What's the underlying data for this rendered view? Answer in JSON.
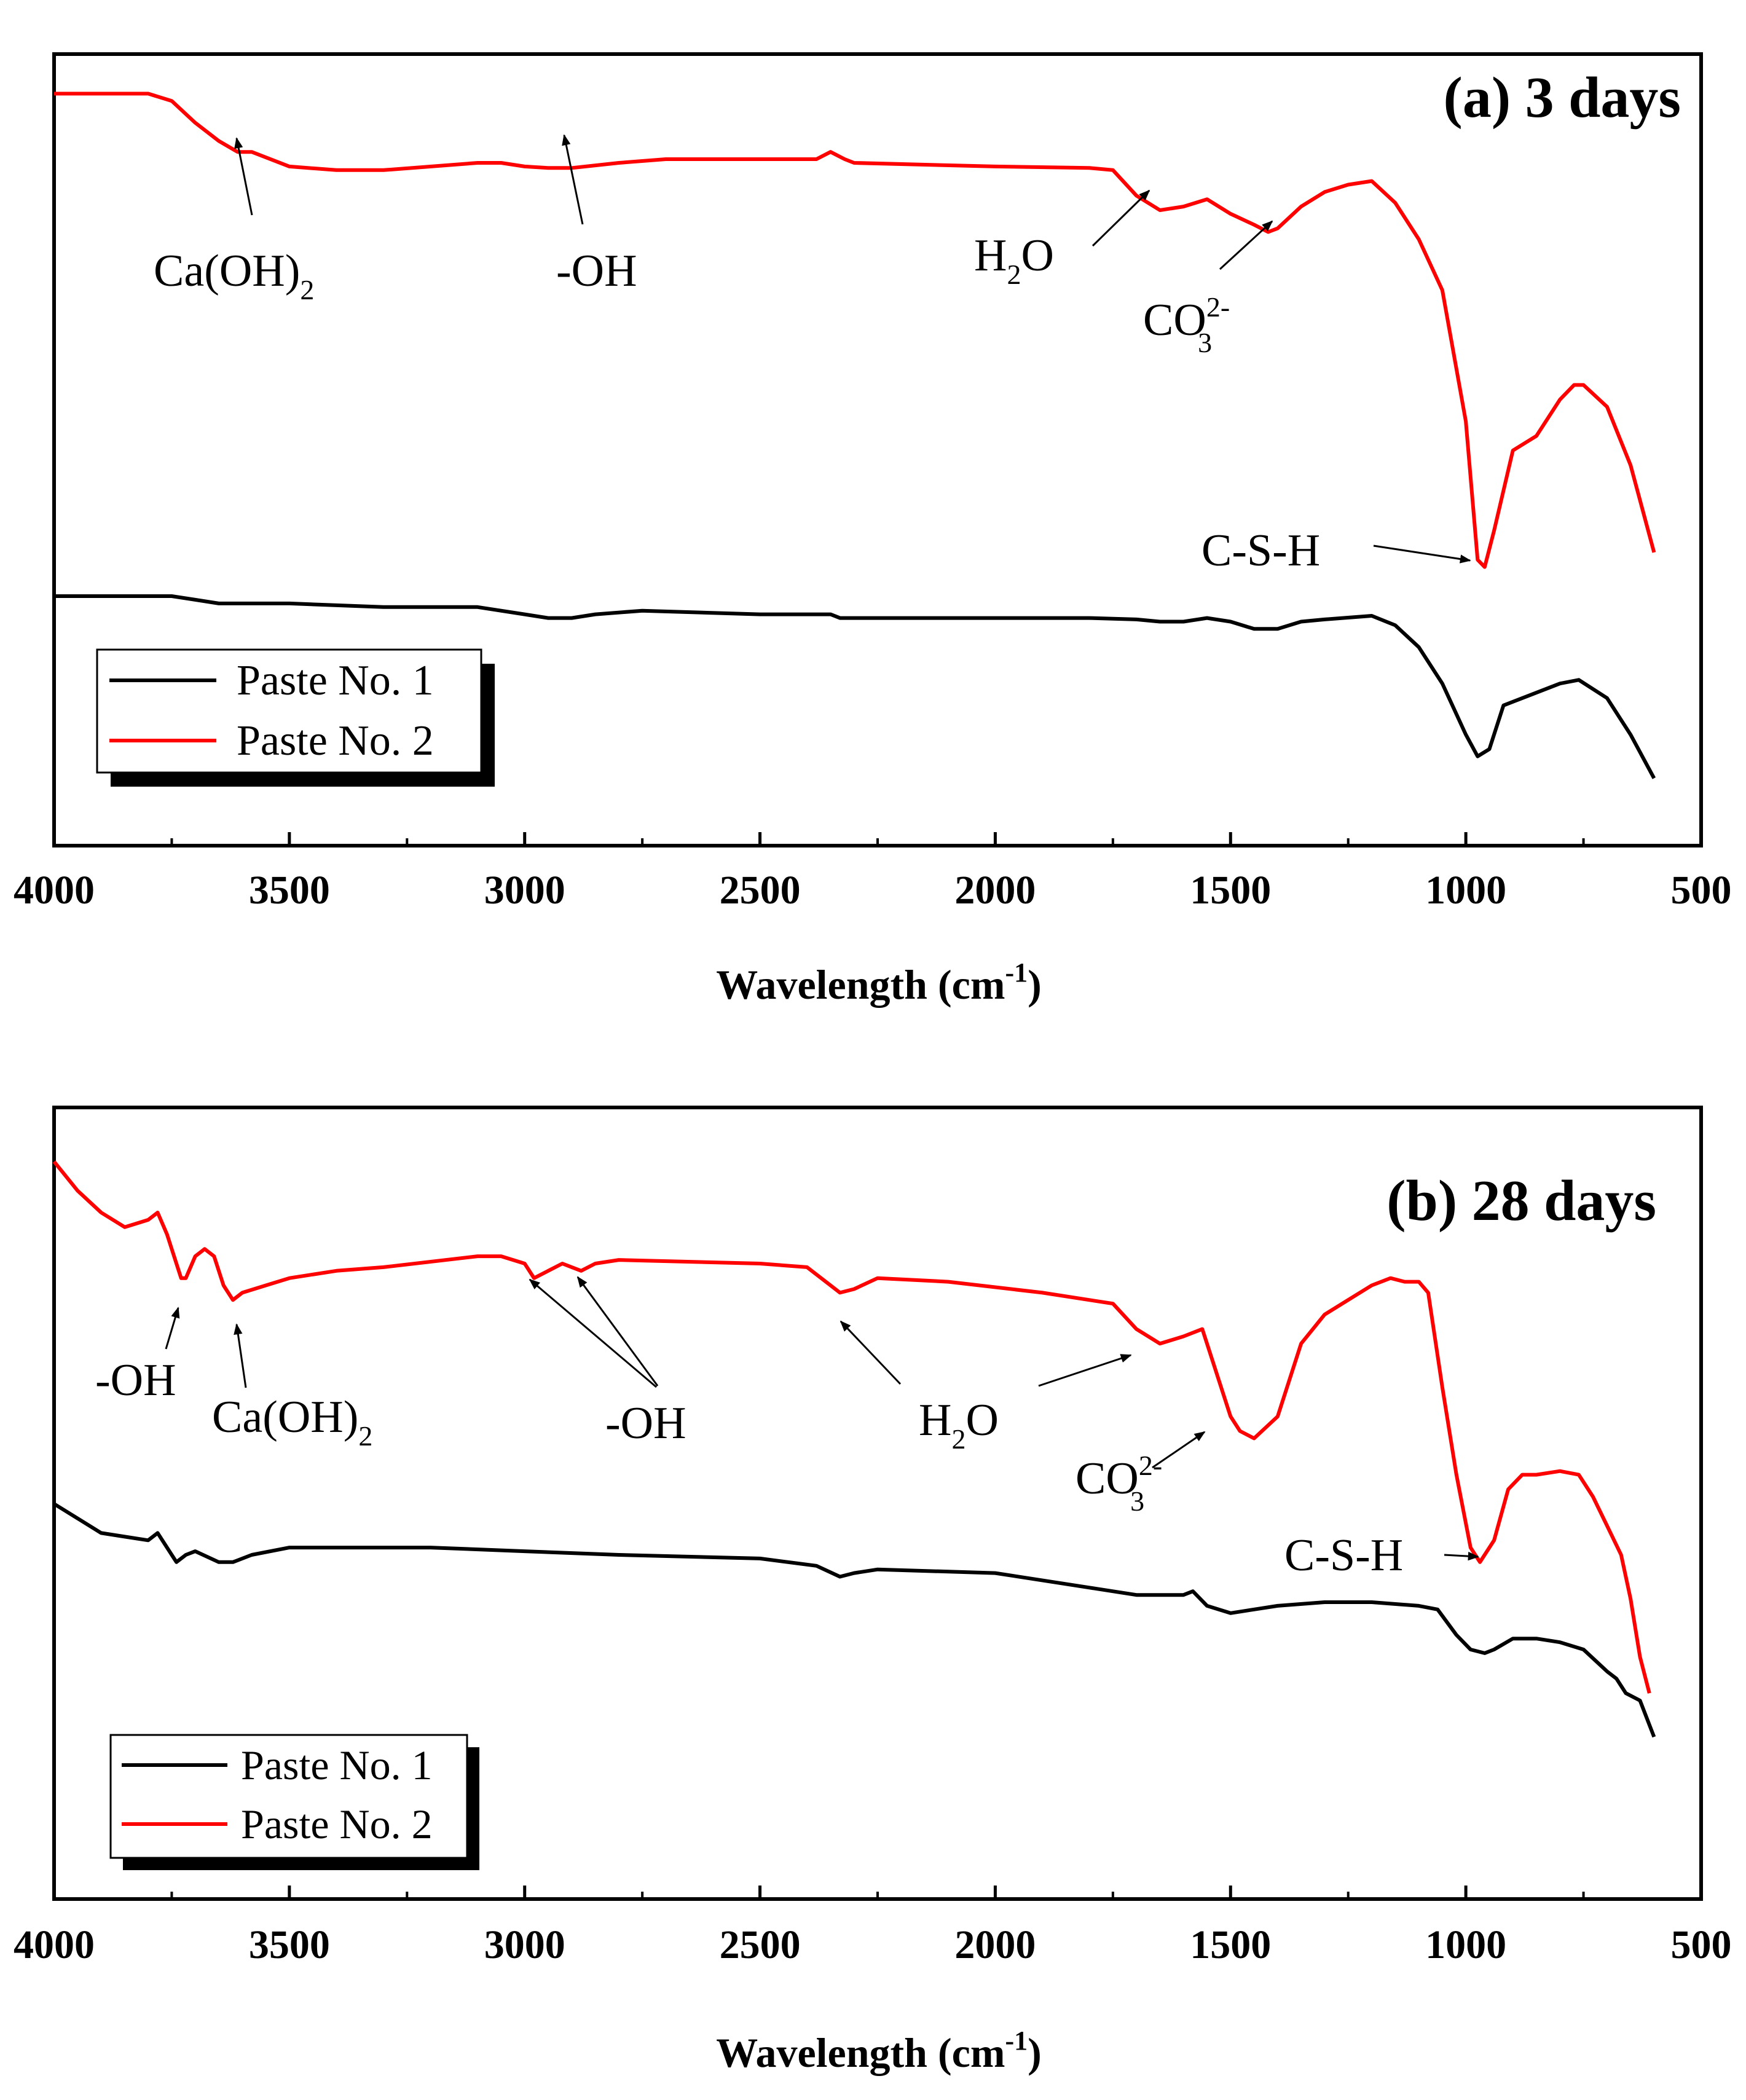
{
  "chart_data": [
    {
      "type": "line",
      "title": "(a) 3 days",
      "xlabel": "Wavelength (cm",
      "xlabel_sup": "-1",
      "xlabel_end": ")",
      "ylabel": "",
      "xlim": [
        4000,
        500
      ],
      "ylim": [
        0,
        100
      ],
      "x_ticks": [
        "4000",
        "3500",
        "3000",
        "2500",
        "2000",
        "1500",
        "1000",
        "500"
      ],
      "legend": {
        "position": "bottom-left",
        "entries": [
          "Paste No. 1",
          "Paste No. 2"
        ]
      },
      "series": [
        {
          "name": "Paste No. 1",
          "color": "#000000",
          "points": [
            [
              4000,
              31
            ],
            [
              3850,
              31
            ],
            [
              3750,
              31
            ],
            [
              3700,
              30.5
            ],
            [
              3650,
              30
            ],
            [
              3600,
              30
            ],
            [
              3500,
              30
            ],
            [
              3300,
              29.5
            ],
            [
              3100,
              29.5
            ],
            [
              3000,
              28.5
            ],
            [
              2950,
              28
            ],
            [
              2900,
              28
            ],
            [
              2850,
              28.5
            ],
            [
              2750,
              29
            ],
            [
              2500,
              28.5
            ],
            [
              2350,
              28.5
            ],
            [
              2330,
              28
            ],
            [
              2300,
              28
            ],
            [
              2200,
              28
            ],
            [
              2000,
              28
            ],
            [
              1800,
              28
            ],
            [
              1700,
              27.8
            ],
            [
              1650,
              27.5
            ],
            [
              1600,
              27.5
            ],
            [
              1550,
              28
            ],
            [
              1500,
              27.5
            ],
            [
              1450,
              26.5
            ],
            [
              1400,
              26.5
            ],
            [
              1350,
              27.5
            ],
            [
              1300,
              27.8
            ],
            [
              1200,
              28.3
            ],
            [
              1150,
              27
            ],
            [
              1100,
              24
            ],
            [
              1050,
              19
            ],
            [
              1000,
              12
            ],
            [
              975,
              9
            ],
            [
              950,
              10
            ],
            [
              920,
              16
            ],
            [
              880,
              17
            ],
            [
              800,
              19
            ],
            [
              760,
              19.5
            ],
            [
              700,
              17
            ],
            [
              650,
              12
            ],
            [
              600,
              6
            ]
          ]
        },
        {
          "name": "Paste No. 2",
          "color": "#ff0000",
          "points": [
            [
              4000,
              100
            ],
            [
              3950,
              100
            ],
            [
              3800,
              100
            ],
            [
              3750,
              99
            ],
            [
              3700,
              96
            ],
            [
              3650,
              93.5
            ],
            [
              3610,
              92
            ],
            [
              3580,
              92
            ],
            [
              3500,
              90
            ],
            [
              3400,
              89.5
            ],
            [
              3300,
              89.5
            ],
            [
              3100,
              90.5
            ],
            [
              3050,
              90.5
            ],
            [
              3000,
              90
            ],
            [
              2950,
              89.8
            ],
            [
              2900,
              89.8
            ],
            [
              2800,
              90.5
            ],
            [
              2700,
              91
            ],
            [
              2500,
              91
            ],
            [
              2380,
              91
            ],
            [
              2350,
              92
            ],
            [
              2320,
              91
            ],
            [
              2300,
              90.5
            ],
            [
              2000,
              90
            ],
            [
              1800,
              89.8
            ],
            [
              1750,
              89.5
            ],
            [
              1700,
              86
            ],
            [
              1650,
              84
            ],
            [
              1600,
              84.5
            ],
            [
              1550,
              85.5
            ],
            [
              1500,
              83.5
            ],
            [
              1450,
              82
            ],
            [
              1420,
              81
            ],
            [
              1400,
              81.5
            ],
            [
              1350,
              84.5
            ],
            [
              1300,
              86.5
            ],
            [
              1250,
              87.5
            ],
            [
              1200,
              88
            ],
            [
              1150,
              85
            ],
            [
              1100,
              80
            ],
            [
              1050,
              73
            ],
            [
              1000,
              55
            ],
            [
              975,
              36
            ],
            [
              960,
              35
            ],
            [
              940,
              40
            ],
            [
              900,
              51
            ],
            [
              850,
              53
            ],
            [
              800,
              58
            ],
            [
              770,
              60
            ],
            [
              750,
              60
            ],
            [
              700,
              57
            ],
            [
              650,
              49
            ],
            [
              600,
              37
            ]
          ]
        }
      ],
      "annotations": [
        {
          "label": "Ca(OH)",
          "sub": "2",
          "x": 3610,
          "y": 92
        },
        {
          "label": "-OH",
          "sub": "",
          "x": 2930,
          "y": 89.8
        },
        {
          "label": "H",
          "sub": "2",
          "label2": "O",
          "x": 1660,
          "y": 84
        },
        {
          "label": "CO",
          "sub": "3",
          "sup": "2-",
          "x": 1415,
          "y": 81
        },
        {
          "label": "C-S-H",
          "sub": "",
          "x": 968,
          "y": 35
        }
      ]
    },
    {
      "type": "line",
      "title": "(b) 28 days",
      "xlabel": "Wavelength (cm",
      "xlabel_sup": "-1",
      "xlabel_end": ")",
      "ylabel": "",
      "xlim": [
        4000,
        500
      ],
      "ylim": [
        0,
        100
      ],
      "x_ticks": [
        "4000",
        "3500",
        "3000",
        "2500",
        "2000",
        "1500",
        "1000",
        "500"
      ],
      "legend": {
        "position": "bottom-left",
        "entries": [
          "Paste No. 1",
          "Paste No. 2"
        ]
      },
      "series": [
        {
          "name": "Paste No. 1",
          "color": "#000000",
          "points": [
            [
              4000,
              51
            ],
            [
              3950,
              49
            ],
            [
              3900,
              47
            ],
            [
              3850,
              46.5
            ],
            [
              3800,
              46
            ],
            [
              3780,
              47
            ],
            [
              3760,
              45
            ],
            [
              3740,
              43
            ],
            [
              3720,
              44
            ],
            [
              3700,
              44.5
            ],
            [
              3650,
              43
            ],
            [
              3620,
              43
            ],
            [
              3580,
              44
            ],
            [
              3500,
              45
            ],
            [
              3400,
              45
            ],
            [
              3200,
              45
            ],
            [
              3000,
              44.5
            ],
            [
              2800,
              44
            ],
            [
              2500,
              43.5
            ],
            [
              2380,
              42.5
            ],
            [
              2330,
              41
            ],
            [
              2300,
              41.5
            ],
            [
              2250,
              42
            ],
            [
              2000,
              41.5
            ],
            [
              1800,
              39.5
            ],
            [
              1700,
              38.5
            ],
            [
              1600,
              38.5
            ],
            [
              1580,
              39
            ],
            [
              1550,
              37
            ],
            [
              1500,
              36
            ],
            [
              1450,
              36.5
            ],
            [
              1400,
              37
            ],
            [
              1300,
              37.5
            ],
            [
              1200,
              37.5
            ],
            [
              1100,
              37
            ],
            [
              1060,
              36.5
            ],
            [
              1020,
              33
            ],
            [
              990,
              31
            ],
            [
              960,
              30.5
            ],
            [
              940,
              31
            ],
            [
              900,
              32.5
            ],
            [
              850,
              32.5
            ],
            [
              800,
              32
            ],
            [
              750,
              31
            ],
            [
              700,
              28
            ],
            [
              680,
              27
            ],
            [
              660,
              25
            ],
            [
              630,
              24
            ],
            [
              600,
              19
            ]
          ]
        },
        {
          "name": "Paste No. 2",
          "color": "#ff0000",
          "points": [
            [
              4000,
              98
            ],
            [
              3950,
              94
            ],
            [
              3900,
              91
            ],
            [
              3850,
              89
            ],
            [
              3800,
              90
            ],
            [
              3780,
              91
            ],
            [
              3760,
              88
            ],
            [
              3730,
              82
            ],
            [
              3720,
              82
            ],
            [
              3700,
              85
            ],
            [
              3680,
              86
            ],
            [
              3660,
              85
            ],
            [
              3640,
              81
            ],
            [
              3620,
              79
            ],
            [
              3600,
              80
            ],
            [
              3550,
              81
            ],
            [
              3500,
              82
            ],
            [
              3400,
              83
            ],
            [
              3300,
              83.5
            ],
            [
              3100,
              85
            ],
            [
              3050,
              85
            ],
            [
              3000,
              84
            ],
            [
              2980,
              82
            ],
            [
              2950,
              83
            ],
            [
              2920,
              84
            ],
            [
              2900,
              83.5
            ],
            [
              2880,
              83
            ],
            [
              2850,
              84
            ],
            [
              2800,
              84.5
            ],
            [
              2500,
              84
            ],
            [
              2400,
              83.5
            ],
            [
              2350,
              81
            ],
            [
              2330,
              80
            ],
            [
              2300,
              80.5
            ],
            [
              2250,
              82
            ],
            [
              2100,
              81.5
            ],
            [
              1900,
              80
            ],
            [
              1750,
              78.5
            ],
            [
              1700,
              75
            ],
            [
              1650,
              73
            ],
            [
              1600,
              74
            ],
            [
              1560,
              75
            ],
            [
              1550,
              73
            ],
            [
              1500,
              63
            ],
            [
              1480,
              61
            ],
            [
              1450,
              60
            ],
            [
              1400,
              63
            ],
            [
              1350,
              73
            ],
            [
              1300,
              77
            ],
            [
              1250,
              79
            ],
            [
              1200,
              81
            ],
            [
              1160,
              82
            ],
            [
              1130,
              81.5
            ],
            [
              1100,
              81.5
            ],
            [
              1080,
              80
            ],
            [
              1050,
              67
            ],
            [
              1020,
              55
            ],
            [
              990,
              45
            ],
            [
              970,
              43
            ],
            [
              940,
              46
            ],
            [
              910,
              53
            ],
            [
              880,
              55
            ],
            [
              850,
              55
            ],
            [
              800,
              55.5
            ],
            [
              760,
              55
            ],
            [
              730,
              52
            ],
            [
              700,
              48
            ],
            [
              670,
              44
            ],
            [
              650,
              38
            ],
            [
              630,
              30
            ],
            [
              610,
              25
            ]
          ]
        }
      ],
      "annotations": [
        {
          "label": "-OH",
          "sub": "",
          "x": 3730,
          "y": 82
        },
        {
          "label": "Ca(OH)",
          "sub": "2",
          "x": 3625,
          "y": 79
        },
        {
          "label": "-OH",
          "sub": "",
          "x": 2975,
          "y": 82
        },
        {
          "label": "-OH",
          "sub": "",
          "x": 2880,
          "y": 83
        },
        {
          "label": "H",
          "sub": "2",
          "label2": "O",
          "x": 2330,
          "y": 80
        },
        {
          "label": "H",
          "sub": "2",
          "label2": "O",
          "x": 1660,
          "y": 73
        },
        {
          "label": "CO",
          "sub": "3",
          "sup": "2-",
          "x": 1460,
          "y": 60
        },
        {
          "label": "C-S-H",
          "sub": "",
          "x": 965,
          "y": 43
        }
      ]
    }
  ]
}
